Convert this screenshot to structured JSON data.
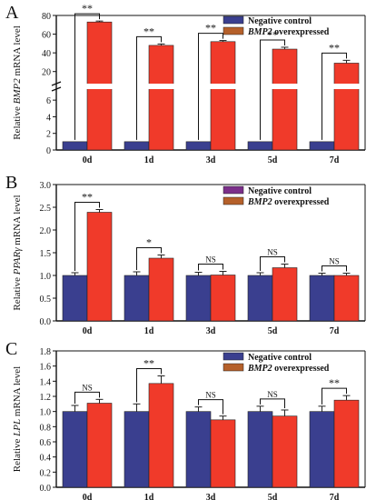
{
  "figure": {
    "colors": {
      "negative_control": "#3a3f8f",
      "overexpressed": "#f03a2a",
      "overexpressed_legend": "#b5602a",
      "negative_legend_b": "#7b2f8a",
      "axis": "#111111",
      "error_bar": "#222222"
    }
  },
  "chart_data": [
    {
      "panel": "A",
      "type": "bar",
      "ylabel_prefix": "Relative ",
      "ylabel_gene": "BMP2",
      "ylabel_suffix": " mRNA level",
      "categories": [
        "0d",
        "1d",
        "3d",
        "5d",
        "7d"
      ],
      "series": [
        {
          "name": "Negative control",
          "values": [
            1,
            1,
            1,
            1,
            1
          ],
          "errors": [
            0,
            0,
            0,
            0,
            0
          ]
        },
        {
          "name_prefix": "",
          "name_gene": "BMP2",
          "name_suffix": " overexpressed",
          "values": [
            73,
            48,
            52,
            44,
            29
          ],
          "errors": [
            1.0,
            1.5,
            1.2,
            2.0,
            3.0
          ]
        }
      ],
      "axis_break": {
        "lower": [
          0,
          7
        ],
        "upper": [
          10,
          80
        ]
      },
      "yticks_lower": [
        "0",
        "2",
        "4",
        "6"
      ],
      "yticks_upper": [
        "20",
        "40",
        "60",
        "80"
      ],
      "significance": [
        "**",
        "**",
        "**",
        "**",
        "**"
      ],
      "legend_position": "top-right"
    },
    {
      "panel": "B",
      "type": "bar",
      "ylabel_prefix": "Relative ",
      "ylabel_gene": "PPARγ",
      "ylabel_suffix": " mRNA level",
      "categories": [
        "0d",
        "1d",
        "3d",
        "5d",
        "7d"
      ],
      "series": [
        {
          "name": "Negative control",
          "values": [
            1.0,
            1.0,
            1.0,
            1.0,
            1.0
          ],
          "errors": [
            0.06,
            0.08,
            0.07,
            0.06,
            0.05
          ]
        },
        {
          "name_prefix": "",
          "name_gene": "BMP2",
          "name_suffix": " overexpressed",
          "values": [
            2.39,
            1.38,
            1.01,
            1.17,
            1.0
          ],
          "errors": [
            0.06,
            0.07,
            0.08,
            0.08,
            0.05
          ]
        }
      ],
      "ylim": [
        0,
        3.0
      ],
      "yticks": [
        "0.0",
        "0.5",
        "1.0",
        "1.5",
        "2.0",
        "2.5",
        "3.0"
      ],
      "significance": [
        "**",
        "*",
        "NS",
        "NS",
        "NS"
      ],
      "legend_position": "top-right"
    },
    {
      "panel": "C",
      "type": "bar",
      "ylabel_prefix": "Relative ",
      "ylabel_gene": "LPL",
      "ylabel_suffix": " mRNA level",
      "categories": [
        "0d",
        "1d",
        "3d",
        "5d",
        "7d"
      ],
      "series": [
        {
          "name": "Negative control",
          "values": [
            1.0,
            1.0,
            1.0,
            1.0,
            1.0
          ],
          "errors": [
            0.08,
            0.1,
            0.06,
            0.07,
            0.07
          ]
        },
        {
          "name_prefix": "",
          "name_gene": "BMP2",
          "name_suffix": " overexpressed",
          "values": [
            1.11,
            1.37,
            0.89,
            0.94,
            1.15
          ],
          "errors": [
            0.05,
            0.1,
            0.05,
            0.08,
            0.06
          ]
        }
      ],
      "ylim": [
        0,
        1.8
      ],
      "yticks": [
        "0.0",
        "0.2",
        "0.4",
        "0.6",
        "0.8",
        "1.0",
        "1.2",
        "1.4",
        "1.6",
        "1.8"
      ],
      "significance": [
        "NS",
        "**",
        "NS",
        "NS",
        "**"
      ],
      "legend_position": "top-right"
    }
  ]
}
